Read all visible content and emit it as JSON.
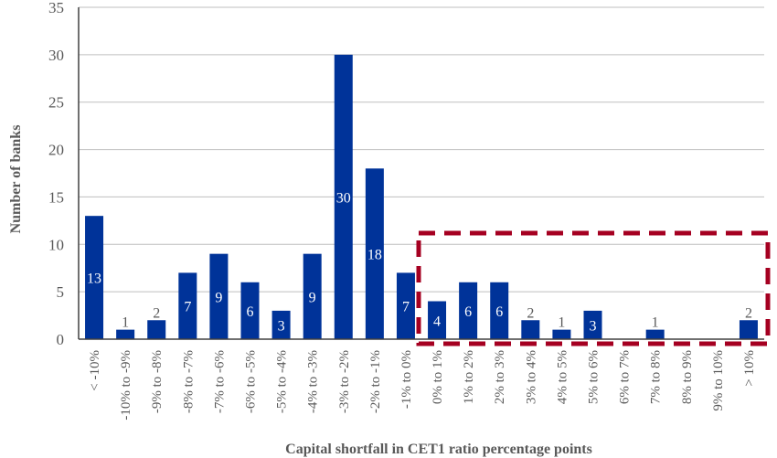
{
  "chart_data": {
    "type": "bar",
    "title": "",
    "xlabel": "Capital shortfall in CET1 ratio percentage points",
    "ylabel": "Number of banks",
    "ylim": [
      0,
      35
    ],
    "yticks": [
      0,
      5,
      10,
      15,
      20,
      25,
      30,
      35
    ],
    "grid": "horizontal",
    "legend": "none",
    "categories": [
      "< -10%",
      "-10% to -9%",
      "-9% to -8%",
      "-8% to -7%",
      "-7% to -6%",
      "-6% to -5%",
      "-5% to -4%",
      "-4% to -3%",
      "-3% to -2%",
      "-2% to -1%",
      "-1% to 0%",
      "0% to 1%",
      "1% to 2%",
      "2% to 3%",
      "3% to 4%",
      "4% to 5%",
      "5% to 6%",
      "6% to 7%",
      "7% to 8%",
      "8% to 9%",
      "9% to 10%",
      "> 10%"
    ],
    "values": [
      13,
      1,
      2,
      7,
      9,
      6,
      3,
      9,
      30,
      18,
      7,
      4,
      6,
      6,
      2,
      1,
      3,
      0,
      1,
      0,
      0,
      2
    ],
    "colors": {
      "bar": "#003399",
      "grid": "#BFBFBF",
      "axis": "#404040",
      "highlight_box": "#A50021"
    },
    "annotations": [
      {
        "type": "dashed-rectangle",
        "description": "Highlights categories from '0% to 1%' through '> 10%'",
        "from_category": "0% to 1%",
        "to_category": "> 10%"
      }
    ]
  }
}
